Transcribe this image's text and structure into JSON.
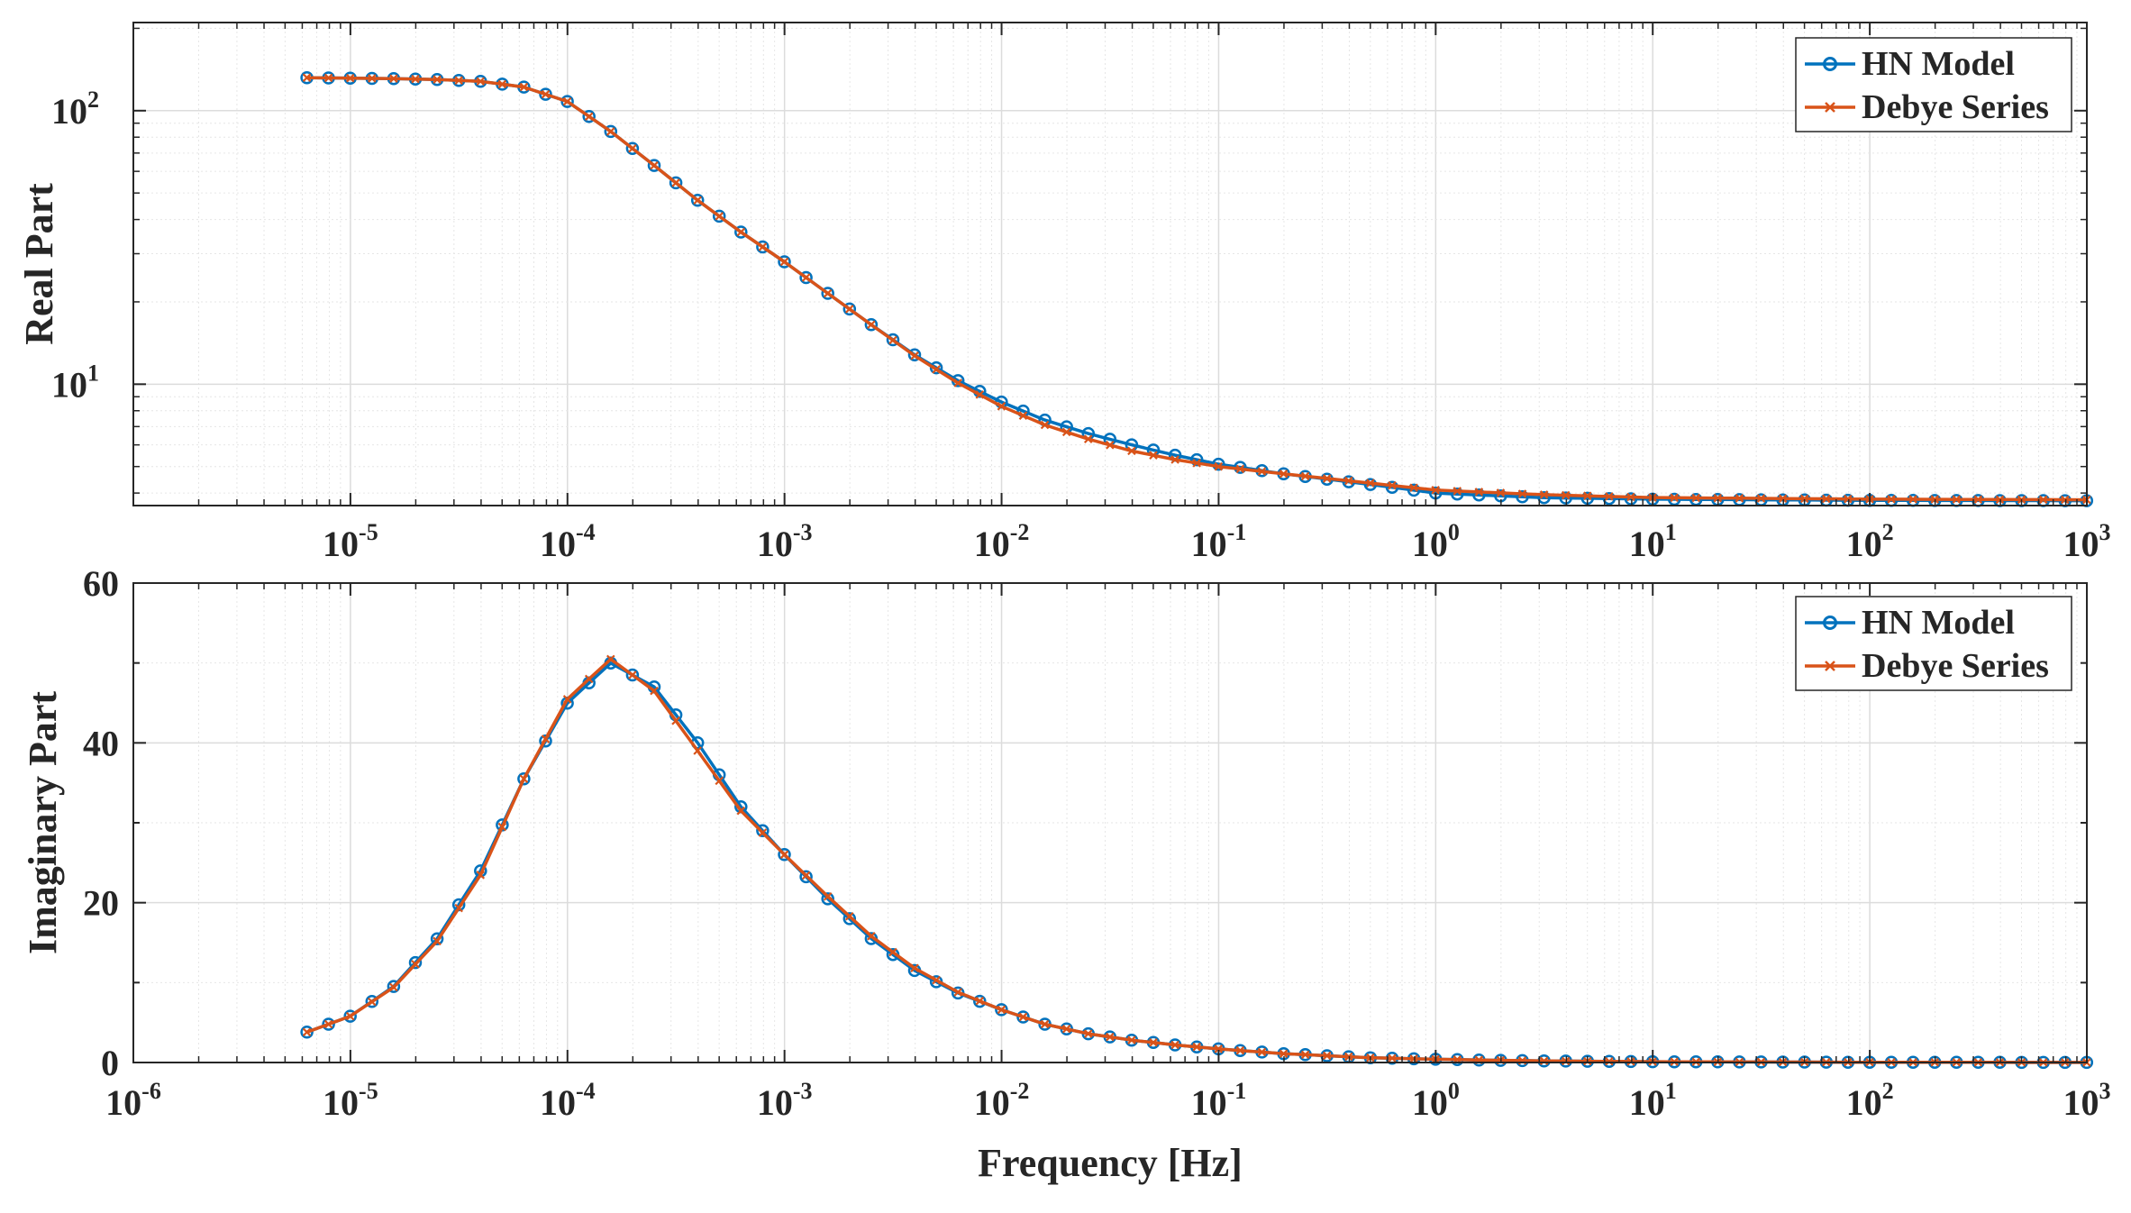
{
  "chart_data": [
    {
      "type": "line",
      "title": "",
      "xlabel": "",
      "ylabel": "Real Part",
      "xscale": "log",
      "yscale": "log",
      "xlim": [
        1e-06,
        1000
      ],
      "ylim": [
        3.6,
        210
      ],
      "grid": true,
      "legend_position": "top-right",
      "x_tick_labels": [
        {
          "base": "10",
          "exp": "-5"
        },
        {
          "base": "10",
          "exp": "-4"
        },
        {
          "base": "10",
          "exp": "-3"
        },
        {
          "base": "10",
          "exp": "-2"
        },
        {
          "base": "10",
          "exp": "-1"
        },
        {
          "base": "10",
          "exp": "0"
        },
        {
          "base": "10",
          "exp": "1"
        },
        {
          "base": "10",
          "exp": "2"
        },
        {
          "base": "10",
          "exp": "3"
        }
      ],
      "y_tick_labels": [
        {
          "base": "10",
          "exp": "1"
        },
        {
          "base": "10",
          "exp": "2"
        }
      ],
      "series": [
        {
          "name": "HN Model",
          "color": "#0072BD",
          "marker": "circle"
        },
        {
          "name": "Debye Series",
          "color": "#D95319",
          "marker": "x"
        }
      ],
      "x": [
        6.3e-06,
        1e-05,
        1.58e-05,
        2.51e-05,
        3.98e-05,
        6.3e-05,
        0.0001,
        0.000158,
        0.000251,
        0.000398,
        0.00063,
        0.001,
        0.00158,
        0.00251,
        0.00398,
        0.0063,
        0.01,
        0.0158,
        0.0251,
        0.0398,
        0.063,
        0.1,
        0.2,
        0.5,
        1,
        3,
        10,
        100,
        1000
      ],
      "values": {
        "HN Model": [
          132,
          131.5,
          131,
          130,
          128,
          122,
          108,
          84,
          63,
          47,
          36,
          28,
          21.5,
          16.5,
          12.8,
          10.3,
          8.6,
          7.4,
          6.6,
          6.0,
          5.5,
          5.1,
          4.7,
          4.3,
          4.0,
          3.85,
          3.8,
          3.76,
          3.75
        ],
        "Debye Series": [
          132,
          131.5,
          131,
          130,
          128,
          122,
          108,
          84,
          63,
          47,
          36,
          28,
          21.5,
          16.5,
          12.7,
          10.1,
          8.3,
          7.1,
          6.3,
          5.7,
          5.3,
          5.0,
          4.7,
          4.35,
          4.1,
          3.95,
          3.85,
          3.8,
          3.78
        ]
      }
    },
    {
      "type": "line",
      "title": "",
      "xlabel": "Frequency [Hz]",
      "ylabel": "Imaginary Part",
      "xscale": "log",
      "yscale": "linear",
      "xlim": [
        1e-06,
        1000
      ],
      "ylim": [
        0,
        60
      ],
      "grid": true,
      "legend_position": "top-right",
      "x_tick_labels": [
        {
          "base": "10",
          "exp": "-6"
        },
        {
          "base": "10",
          "exp": "-5"
        },
        {
          "base": "10",
          "exp": "-4"
        },
        {
          "base": "10",
          "exp": "-3"
        },
        {
          "base": "10",
          "exp": "-2"
        },
        {
          "base": "10",
          "exp": "-1"
        },
        {
          "base": "10",
          "exp": "0"
        },
        {
          "base": "10",
          "exp": "1"
        },
        {
          "base": "10",
          "exp": "2"
        },
        {
          "base": "10",
          "exp": "3"
        }
      ],
      "y_tick_labels": [
        "0",
        "20",
        "40",
        "60"
      ],
      "series": [
        {
          "name": "HN Model",
          "color": "#0072BD",
          "marker": "circle"
        },
        {
          "name": "Debye Series",
          "color": "#D95319",
          "marker": "x"
        }
      ],
      "x": [
        6.3e-06,
        1e-05,
        1.58e-05,
        2.51e-05,
        3.98e-05,
        6.3e-05,
        0.0001,
        0.000158,
        0.000251,
        0.000398,
        0.00063,
        0.001,
        0.00158,
        0.00251,
        0.00398,
        0.0063,
        0.01,
        0.0158,
        0.0251,
        0.0398,
        0.063,
        0.1,
        0.2,
        0.5,
        1,
        3,
        10,
        100,
        1000
      ],
      "values": {
        "HN Model": [
          3.8,
          5.8,
          9.5,
          15.5,
          24,
          35.5,
          45,
          50,
          47,
          40,
          32,
          26,
          20.5,
          15.5,
          11.5,
          8.7,
          6.6,
          4.8,
          3.6,
          2.8,
          2.2,
          1.7,
          1.1,
          0.6,
          0.4,
          0.2,
          0.1,
          0.03,
          0.01
        ],
        "Debye Series": [
          3.8,
          5.8,
          9.4,
          15.2,
          23.5,
          35.5,
          45.5,
          50.5,
          46.5,
          39,
          31.5,
          26,
          20.8,
          15.8,
          11.8,
          8.8,
          6.6,
          4.8,
          3.6,
          2.8,
          2.2,
          1.7,
          1.1,
          0.6,
          0.4,
          0.2,
          0.1,
          0.03,
          0.01
        ]
      }
    }
  ]
}
